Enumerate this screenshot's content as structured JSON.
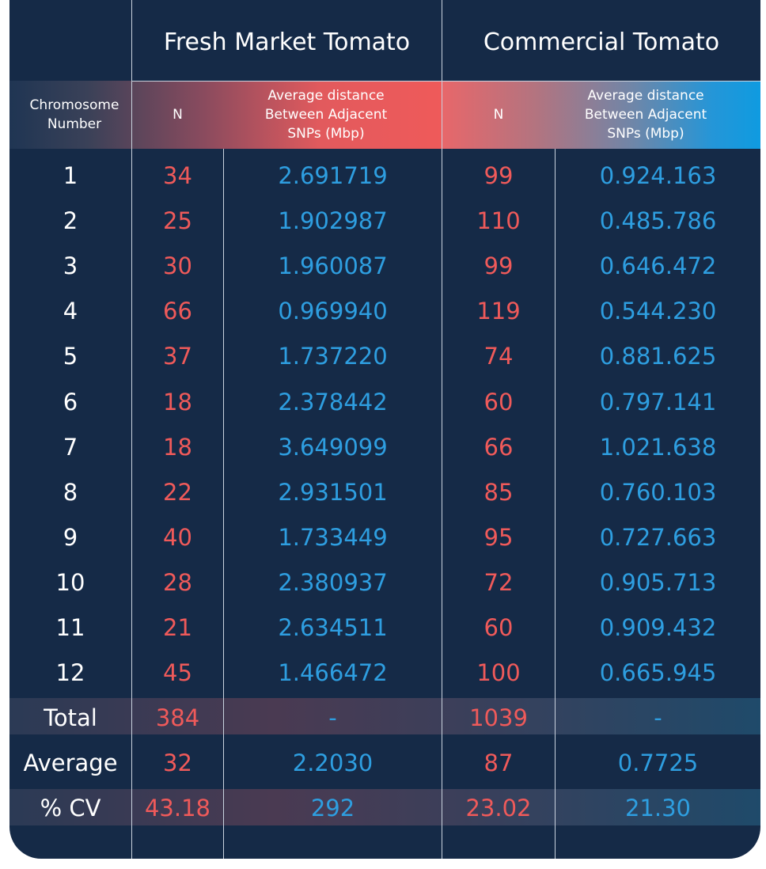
{
  "groups": {
    "fresh": "Fresh Market Tomato",
    "commercial": "Commercial Tomato"
  },
  "headers": {
    "chromosome": "Chromosome Number",
    "n_fresh": "N",
    "avg_fresh": "Average distance Between Adjacent SNPs (Mbp)",
    "n_commercial": "N",
    "avg_commercial": "Average distance Between Adjacent SNPs (Mbp)"
  },
  "rows": [
    {
      "label": "1",
      "n_fresh": "34",
      "avg_fresh": "2.691719",
      "n_com": "99",
      "avg_com": "0.924.163"
    },
    {
      "label": "2",
      "n_fresh": "25",
      "avg_fresh": "1.902987",
      "n_com": "110",
      "avg_com": "0.485.786"
    },
    {
      "label": "3",
      "n_fresh": "30",
      "avg_fresh": "1.960087",
      "n_com": "99",
      "avg_com": "0.646.472"
    },
    {
      "label": "4",
      "n_fresh": "66",
      "avg_fresh": "0.969940",
      "n_com": "119",
      "avg_com": "0.544.230"
    },
    {
      "label": "5",
      "n_fresh": "37",
      "avg_fresh": "1.737220",
      "n_com": "74",
      "avg_com": "0.881.625"
    },
    {
      "label": "6",
      "n_fresh": "18",
      "avg_fresh": "2.378442",
      "n_com": "60",
      "avg_com": "0.797.141"
    },
    {
      "label": "7",
      "n_fresh": "18",
      "avg_fresh": "3.649099",
      "n_com": "66",
      "avg_com": "1.021.638"
    },
    {
      "label": "8",
      "n_fresh": "22",
      "avg_fresh": "2.931501",
      "n_com": "85",
      "avg_com": "0.760.103"
    },
    {
      "label": "9",
      "n_fresh": "40",
      "avg_fresh": "1.733449",
      "n_com": "95",
      "avg_com": "0.727.663"
    },
    {
      "label": "10",
      "n_fresh": "28",
      "avg_fresh": "2.380937",
      "n_com": "72",
      "avg_com": "0.905.713"
    },
    {
      "label": "11",
      "n_fresh": "21",
      "avg_fresh": "2.634511",
      "n_com": "60",
      "avg_com": "0.909.432"
    },
    {
      "label": "12",
      "n_fresh": "45",
      "avg_fresh": "1.466472",
      "n_com": "100",
      "avg_com": "0.665.945"
    }
  ],
  "summary": [
    {
      "label": "Total",
      "n_fresh": "384",
      "avg_fresh": "-",
      "n_com": "1039",
      "avg_com": "-"
    },
    {
      "label": "Average",
      "n_fresh": "32",
      "avg_fresh": "2.2030",
      "n_com": "87",
      "avg_com": "0.7725"
    },
    {
      "label": "% CV",
      "n_fresh": "43.18",
      "avg_fresh": "292",
      "n_com": "23.02",
      "avg_com": "21.30"
    }
  ],
  "colors": {
    "background": "#152a47",
    "fresh_accent": "#ef5a5a",
    "commercial_accent": "#2e9ee0"
  }
}
